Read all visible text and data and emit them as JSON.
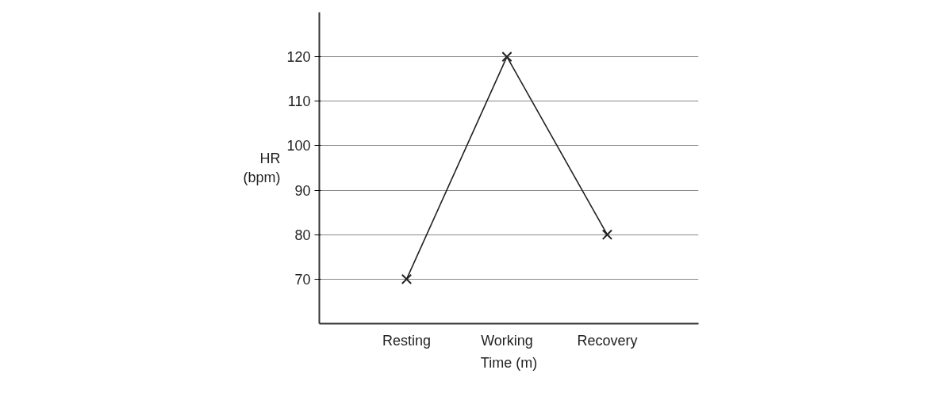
{
  "chart_data": {
    "type": "line",
    "categories": [
      "Resting",
      "Working",
      "Recovery"
    ],
    "series": [
      {
        "color": "#222222",
        "values": [
          70,
          120,
          80
        ]
      }
    ],
    "xlabel": "Time (m)",
    "ylabel": "HR\n(bpm)",
    "ylim": [
      60,
      130
    ],
    "yticks": [
      70,
      80,
      90,
      100,
      110,
      120
    ],
    "grid": "y",
    "marker": "cross"
  }
}
